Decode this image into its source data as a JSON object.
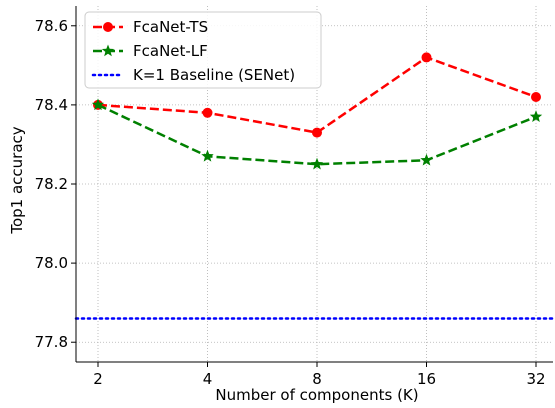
{
  "chart_data": {
    "type": "line",
    "title": "",
    "xlabel": "Number of components (K)",
    "ylabel": "Top1 accuracy",
    "categories": [
      "2",
      "4",
      "8",
      "16",
      "32"
    ],
    "yticks": [
      "77.8",
      "78.0",
      "78.2",
      "78.4",
      "78.6"
    ],
    "ylim": [
      77.75,
      78.65
    ],
    "grid": true,
    "legend_position": "top-left",
    "series": [
      {
        "name": "FcaNet-TS",
        "values": [
          78.4,
          78.38,
          78.33,
          78.52,
          78.42
        ],
        "color": "#ff0000",
        "marker": "circle",
        "linestyle": "dashed"
      },
      {
        "name": "FcaNet-LF",
        "values": [
          78.4,
          78.27,
          78.25,
          78.26,
          78.37
        ],
        "color": "#008000",
        "marker": "star",
        "linestyle": "dashed"
      },
      {
        "name": "K=1 Baseline (SENet)",
        "constant": 77.86,
        "color": "#0000ff",
        "linestyle": "dotted"
      }
    ]
  }
}
